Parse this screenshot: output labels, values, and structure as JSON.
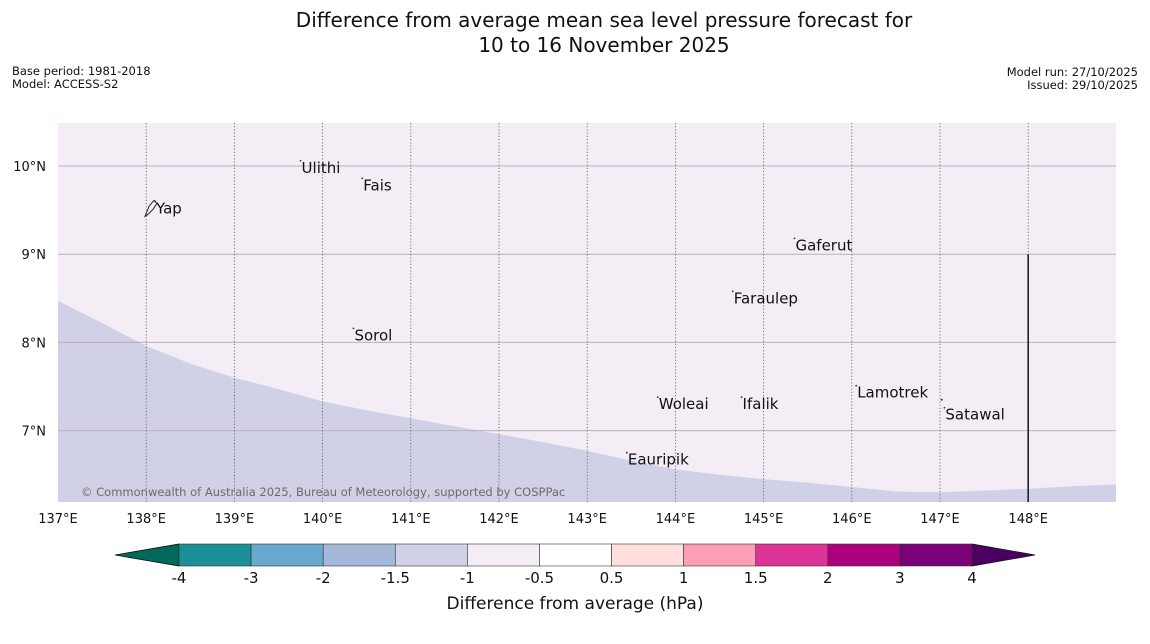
{
  "title": {
    "line1": "Difference from average mean sea level pressure forecast for",
    "line2": "10 to 16 November 2025"
  },
  "meta_left": {
    "base_period": "Base period: 1981-2018",
    "model": "Model: ACCESS-S2"
  },
  "meta_right": {
    "model_run": "Model run: 27/10/2025",
    "issued": "Issued: 29/10/2025"
  },
  "map": {
    "extent": {
      "lon_min": 137,
      "lon_max": 149,
      "lat_min": 6.2,
      "lat_max": 10.5
    },
    "lon_ticks": [
      {
        "value": 137,
        "label": "137°E"
      },
      {
        "value": 138,
        "label": "138°E"
      },
      {
        "value": 139,
        "label": "139°E"
      },
      {
        "value": 140,
        "label": "140°E"
      },
      {
        "value": 141,
        "label": "141°E"
      },
      {
        "value": 142,
        "label": "142°E"
      },
      {
        "value": 143,
        "label": "143°E"
      },
      {
        "value": 144,
        "label": "144°E"
      },
      {
        "value": 145,
        "label": "145°E"
      },
      {
        "value": 146,
        "label": "146°E"
      },
      {
        "value": 147,
        "label": "147°E"
      },
      {
        "value": 148,
        "label": "148°E"
      }
    ],
    "lat_ticks": [
      {
        "value": 10,
        "label": "10°N"
      },
      {
        "value": 9,
        "label": "9°N"
      },
      {
        "value": 8,
        "label": "8°N"
      },
      {
        "value": 7,
        "label": "7°N"
      }
    ],
    "boundary_lat_by_lon": [
      [
        137,
        8.47
      ],
      [
        137.5,
        8.22
      ],
      [
        138,
        7.96
      ],
      [
        138.5,
        7.76
      ],
      [
        139,
        7.6
      ],
      [
        139.5,
        7.47
      ],
      [
        140,
        7.33
      ],
      [
        140.5,
        7.23
      ],
      [
        141,
        7.14
      ],
      [
        141.5,
        7.05
      ],
      [
        142,
        6.96
      ],
      [
        142.5,
        6.87
      ],
      [
        143,
        6.77
      ],
      [
        143.5,
        6.66
      ],
      [
        144,
        6.56
      ],
      [
        144.5,
        6.5
      ],
      [
        145,
        6.45
      ],
      [
        145.5,
        6.41
      ],
      [
        146,
        6.36
      ],
      [
        146.5,
        6.31
      ],
      [
        147,
        6.3
      ],
      [
        147.5,
        6.32
      ],
      [
        148,
        6.34
      ],
      [
        148.5,
        6.37
      ],
      [
        149,
        6.39
      ]
    ],
    "region_above_color": "#f5edf5",
    "region_below_color": "#d0d1e6",
    "boundary_line": {
      "lon": 148,
      "lat_from": 6.2,
      "lat_to": 9
    },
    "places": [
      {
        "name": "Yap",
        "lon": 138.1,
        "lat": 9.52
      },
      {
        "name": "Ulithi",
        "lon": 139.75,
        "lat": 9.98
      },
      {
        "name": "Fais",
        "lon": 140.45,
        "lat": 9.78
      },
      {
        "name": "Gaferut",
        "lon": 145.35,
        "lat": 9.1
      },
      {
        "name": "Faraulep",
        "lon": 144.65,
        "lat": 8.5
      },
      {
        "name": "Sorol",
        "lon": 140.35,
        "lat": 8.08
      },
      {
        "name": "Lamotrek",
        "lon": 146.05,
        "lat": 7.43
      },
      {
        "name": "Woleai",
        "lon": 143.8,
        "lat": 7.3
      },
      {
        "name": "Ifalik",
        "lon": 144.75,
        "lat": 7.3
      },
      {
        "name": "Satawal",
        "lon": 147.05,
        "lat": 7.18
      },
      {
        "name": "Eauripik",
        "lon": 143.45,
        "lat": 6.67
      }
    ],
    "copyright": "© Commonwealth of Australia 2025, Bureau of Meteorology, supported by COSPPac"
  },
  "colorbar": {
    "label": "Difference from average (hPa)",
    "ticks": [
      "-4",
      "-3",
      "-2",
      "-1.5",
      "-1",
      "-0.5",
      "0.5",
      "1",
      "1.5",
      "2",
      "3",
      "4"
    ],
    "under_color": "#00695c",
    "over_color": "#4a0060",
    "colors": [
      "#1b8f96",
      "#67a9cf",
      "#a6b8d9",
      "#d0d1e6",
      "#f5edf5",
      "#ffffff",
      "#fde0dd",
      "#fa9fb5",
      "#dd3497",
      "#ae017e",
      "#7a0177"
    ]
  }
}
